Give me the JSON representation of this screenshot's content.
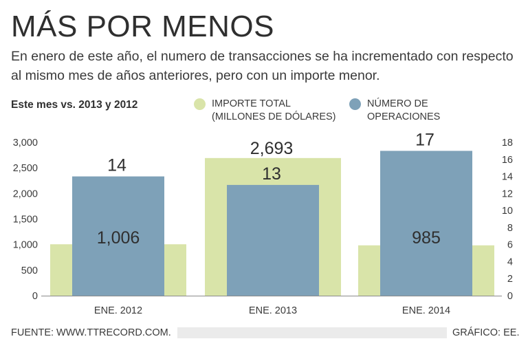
{
  "header": {
    "title": "MÁS POR MENOS",
    "subtitle": "En enero de este año, el numero de transacciones se ha incrementado con respecto al mismo mes de años anteriores, pero con un importe menor."
  },
  "section_label": "Este mes vs. 2013 y 2012",
  "legend": {
    "importe": "IMPORTE TOTAL\n(MILLONES DE DÓLARES)",
    "operaciones": "NÚMERO DE\nOPERACIONES"
  },
  "colors": {
    "importe": "#d9e4a9",
    "operaciones": "#7ea1b8",
    "background": "#ffffff"
  },
  "chart_data": {
    "type": "bar",
    "categories": [
      "ENE. 2012",
      "ENE. 2013",
      "ENE. 2014"
    ],
    "series": [
      {
        "name": "IMPORTE TOTAL (MILLONES DE DÓLARES)",
        "axis": "left",
        "values": [
          1006,
          2693,
          985
        ],
        "labels": [
          "1,006",
          "2,693",
          "985"
        ]
      },
      {
        "name": "NÚMERO DE OPERACIONES",
        "axis": "right",
        "values": [
          14,
          13,
          17
        ],
        "labels": [
          "14",
          "13",
          "17"
        ]
      }
    ],
    "left_axis": {
      "ylim": [
        0,
        3000
      ],
      "ticks": [
        "0",
        "500",
        "1,000",
        "1,500",
        "2,000",
        "2,500",
        "3,000"
      ]
    },
    "right_axis": {
      "ylim": [
        0,
        18
      ],
      "ticks": [
        "0",
        "2",
        "4",
        "6",
        "8",
        "10",
        "12",
        "14",
        "16",
        "18"
      ]
    }
  },
  "footer": {
    "source": "FUENTE: WWW.TTRECORD.COM.",
    "credit": "GRÁFICO: EE."
  }
}
